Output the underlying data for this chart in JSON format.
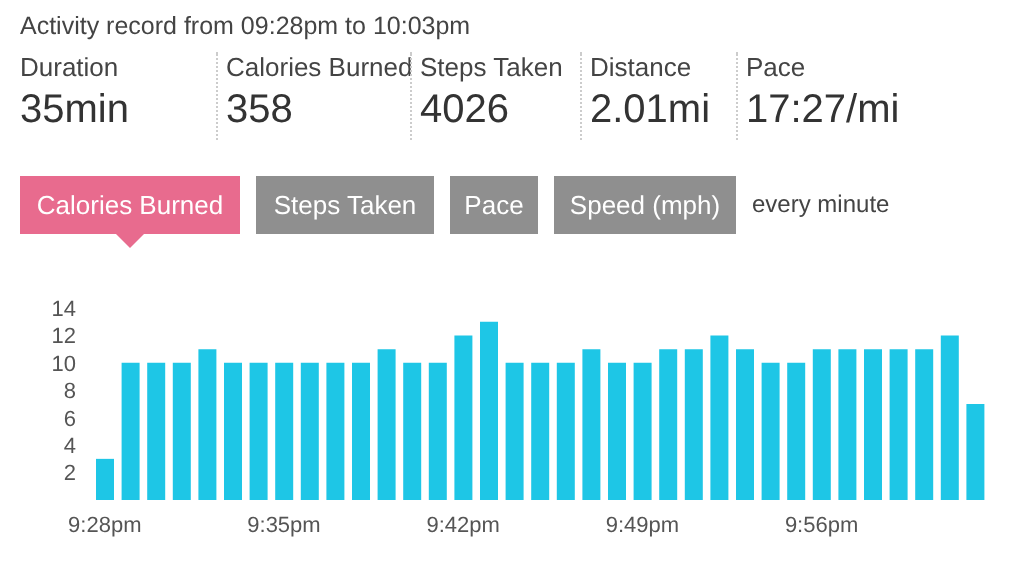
{
  "chart_data": {
    "type": "bar",
    "title": "Activity record from 09:28pm to 10:03pm",
    "annotations": [
      "Duration",
      "35min",
      "Calories Burned",
      "358",
      "Steps Taken",
      "4026",
      "Distance",
      "2.01mi",
      "Pace",
      "17:27/mi",
      "Calories Burned",
      "Steps Taken",
      "Pace",
      "Speed (mph)",
      "every minute"
    ],
    "categories": [
      "9:28pm",
      null,
      null,
      null,
      null,
      null,
      null,
      "9:35pm",
      null,
      null,
      null,
      null,
      null,
      null,
      "9:42pm",
      null,
      null,
      null,
      null,
      null,
      null,
      "9:49pm",
      null,
      null,
      null,
      null,
      null,
      null,
      "9:56pm",
      null,
      null,
      null,
      null,
      null,
      null
    ],
    "values": [
      3,
      10,
      10,
      10,
      11,
      10,
      10,
      10,
      10,
      10,
      10,
      11,
      10,
      10,
      12,
      13,
      10,
      10,
      10,
      11,
      10,
      10,
      11,
      11,
      12,
      11,
      10,
      10,
      11,
      11,
      11,
      11,
      11,
      12,
      7
    ],
    "color": "#1ec6e6",
    "ylim": [
      0,
      14
    ],
    "yticks": [
      2,
      4,
      6,
      8,
      10,
      12,
      14
    ],
    "grid": false
  }
}
